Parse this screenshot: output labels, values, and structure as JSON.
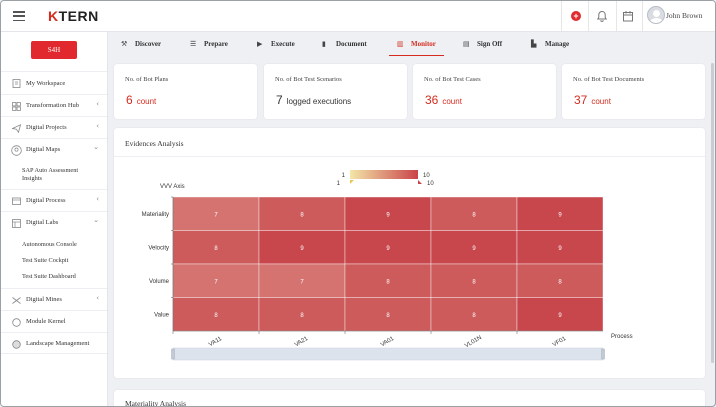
{
  "header": {
    "logo_prefix": "K",
    "logo_suffix": "TERN",
    "user_name": "John Brown",
    "icons": [
      "menu-icon",
      "add-icon",
      "bell-icon",
      "calendar-icon",
      "avatar"
    ]
  },
  "sidebar": {
    "badge": "S4H",
    "items": [
      {
        "label": "My Workspace",
        "icon": "workspace-icon",
        "chevron": ""
      },
      {
        "label": "Transformation Hub",
        "icon": "grid-icon",
        "chevron": "‹"
      },
      {
        "label": "Digital Projects",
        "icon": "send-icon",
        "chevron": "‹"
      },
      {
        "label": "Digital Maps",
        "icon": "map-icon",
        "chevron": "⌄"
      },
      {
        "label": "Digital Process",
        "icon": "process-icon",
        "chevron": "‹"
      },
      {
        "label": "Digital Labs",
        "icon": "lab-icon",
        "chevron": "⌄"
      },
      {
        "label": "Digital Mines",
        "icon": "mines-icon",
        "chevron": "‹"
      },
      {
        "label": "Module Kernel",
        "icon": "kernel-icon",
        "chevron": ""
      },
      {
        "label": "Landscape Management",
        "icon": "landscape-icon",
        "chevron": ""
      }
    ],
    "maps_subitems": [
      "SAP Auto Assessment Insights"
    ],
    "labs_subitems": [
      "Autonomous Console",
      "Test Suite Cockpit",
      "Test Suite Dashboard"
    ]
  },
  "tabs": [
    {
      "label": "Discover",
      "icon": "⚒",
      "active": false
    },
    {
      "label": "Prepare",
      "icon": "☰",
      "active": false
    },
    {
      "label": "Execute",
      "icon": "▶",
      "active": false
    },
    {
      "label": "Document",
      "icon": "▮",
      "active": false
    },
    {
      "label": "Monitor",
      "icon": "▥",
      "active": true
    },
    {
      "label": "Sign Off",
      "icon": "▤",
      "active": false
    },
    {
      "label": "Manage",
      "icon": "▙",
      "active": false
    }
  ],
  "stats": [
    {
      "label": "No. of Bot Plans",
      "value": "6",
      "unit": "count",
      "accent": true
    },
    {
      "label": "No. of Bot Test Scenarios",
      "value": "7",
      "unit": "logged executions",
      "accent": false
    },
    {
      "label": "No. of Bot Test Cases",
      "value": "36",
      "unit": "count",
      "accent": true
    },
    {
      "label": "No. of Bot Test Documents",
      "value": "37",
      "unit": "count",
      "accent": true
    }
  ],
  "evidences": {
    "title": "Evidences Analysis"
  },
  "materiality": {
    "title": "Materiality Analysis"
  },
  "chart_data": {
    "type": "heatmap",
    "ylabel": "VVV Axis",
    "xlabel": "Process",
    "x_categories": [
      "VA11",
      "VA21",
      "VA01",
      "VL01N",
      "VF01"
    ],
    "y_categories": [
      "Materiality",
      "Velocity",
      "Volume",
      "Value"
    ],
    "values": [
      [
        7,
        8,
        9,
        8,
        9
      ],
      [
        8,
        9,
        9,
        9,
        9
      ],
      [
        7,
        7,
        8,
        8,
        8
      ],
      [
        8,
        8,
        8,
        8,
        9
      ]
    ],
    "visual_map": {
      "min": 1,
      "max": 10,
      "min_label": "1",
      "max_label": "10",
      "handle_min_label": "1",
      "handle_max_label": "10",
      "color_low": "#f3e6a8",
      "color_high": "#c9444a"
    }
  },
  "colors": {
    "accent": "#d52b1e",
    "heat_7": "#d4736f",
    "heat_8": "#cd5b5c",
    "heat_9": "#c8474d"
  }
}
